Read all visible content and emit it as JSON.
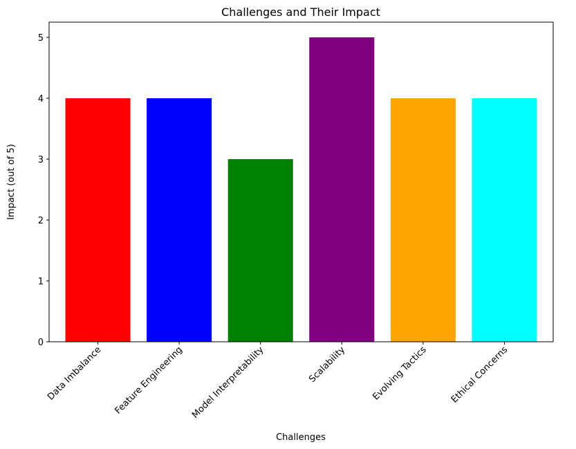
{
  "chart_data": {
    "type": "bar",
    "title": "Challenges and Their Impact",
    "xlabel": "Challenges",
    "ylabel": "Impact (out of 5)",
    "categories": [
      "Data Imbalance",
      "Feature Engineering",
      "Model Interpretability",
      "Scalability",
      "Evolving Tactics",
      "Ethical Concerns"
    ],
    "values": [
      4,
      4,
      3,
      5,
      4,
      4
    ],
    "colors": [
      "#ff0000",
      "#0000ff",
      "#008000",
      "#800080",
      "#ffa500",
      "#00ffff"
    ],
    "ylim": [
      0,
      5.25
    ],
    "yticks": [
      0,
      1,
      2,
      3,
      4,
      5
    ],
    "grid": false,
    "legend": "none"
  }
}
